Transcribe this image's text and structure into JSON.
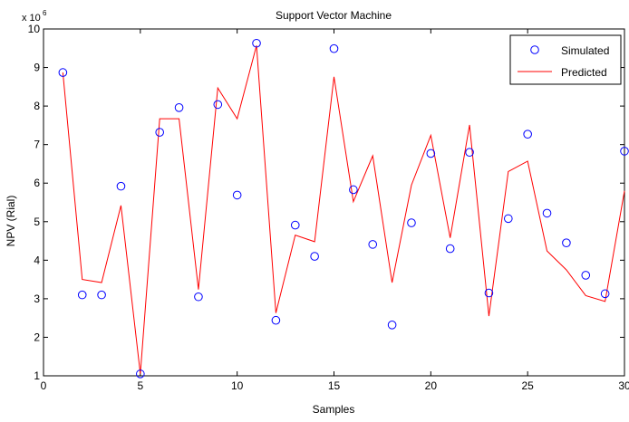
{
  "chart_data": {
    "type": "scatter",
    "title": "Support Vector Machine",
    "xlabel": "Samples",
    "ylabel": "NPV (Rial)",
    "y_exponent_label": "x 10",
    "y_exponent_power": "6",
    "xlim": [
      0,
      30
    ],
    "ylim": [
      1,
      10
    ],
    "x_ticks": [
      0,
      5,
      10,
      15,
      20,
      25,
      30
    ],
    "y_ticks": [
      1,
      2,
      3,
      4,
      5,
      6,
      7,
      8,
      9,
      10
    ],
    "y_scale_factor": 1000000,
    "grid": false,
    "legend_position": "top-right",
    "series": [
      {
        "name": "Simulated",
        "style": "markers",
        "color": "#0000ff",
        "x": [
          1,
          2,
          3,
          4,
          5,
          6,
          7,
          8,
          9,
          10,
          11,
          12,
          13,
          14,
          15,
          16,
          17,
          18,
          19,
          20,
          21,
          22,
          23,
          24,
          25,
          26,
          27,
          28,
          29,
          30
        ],
        "y": [
          8.87,
          3.1,
          3.1,
          5.92,
          1.05,
          7.32,
          7.96,
          3.05,
          8.04,
          5.69,
          9.63,
          2.44,
          4.91,
          4.1,
          9.49,
          5.83,
          4.41,
          2.32,
          4.97,
          6.77,
          4.3,
          6.8,
          3.15,
          5.08,
          7.27,
          5.22,
          4.45,
          3.61,
          3.13,
          6.83
        ]
      },
      {
        "name": "Predicted",
        "style": "line",
        "color": "#ff0000",
        "x": [
          1,
          2,
          3,
          4,
          5,
          6,
          7,
          8,
          9,
          10,
          11,
          12,
          13,
          14,
          15,
          16,
          17,
          18,
          19,
          20,
          21,
          22,
          23,
          24,
          25,
          26,
          27,
          28,
          29,
          30
        ],
        "y": [
          8.87,
          3.5,
          3.42,
          5.42,
          1.05,
          7.67,
          7.67,
          3.24,
          8.47,
          7.67,
          9.57,
          2.63,
          4.65,
          4.48,
          8.76,
          5.52,
          6.71,
          3.42,
          5.95,
          7.24,
          4.58,
          7.51,
          2.55,
          6.3,
          6.57,
          4.24,
          3.75,
          3.08,
          2.93,
          5.8
        ]
      }
    ]
  }
}
